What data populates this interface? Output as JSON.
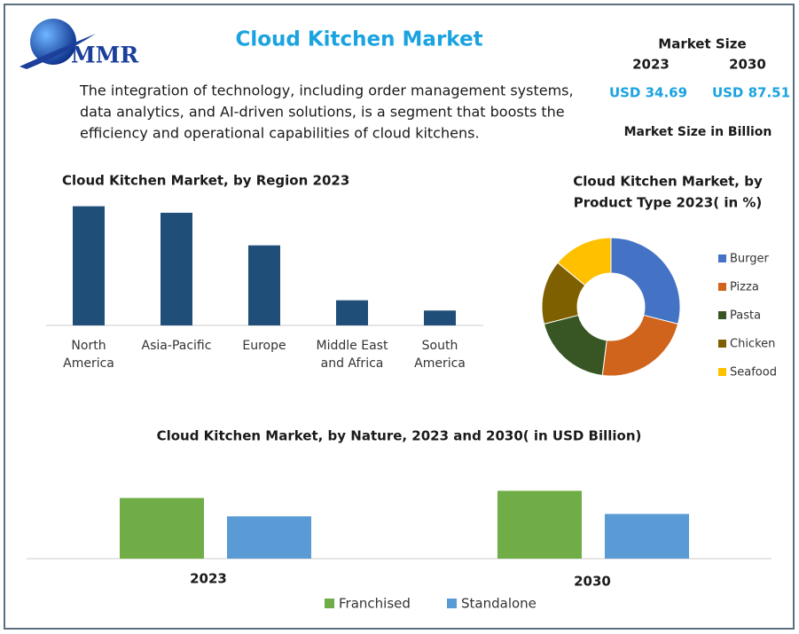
{
  "header": {
    "logo": "MMR",
    "title": "Cloud Kitchen Market",
    "description": [
      "The integration of technology, including order management systems,",
      "data analytics, and AI-driven solutions, is a segment that boosts the",
      "efficiency and operational capabilities of cloud kitchens."
    ],
    "market_size": {
      "label": "Market Size",
      "years": [
        "2023",
        "2030"
      ],
      "values": [
        "USD 34.69",
        "USD 87.51"
      ],
      "note": "Market Size in Billion"
    }
  },
  "chart_data": [
    {
      "type": "bar",
      "title": "Cloud Kitchen Market, by Region 2023",
      "categories": [
        [
          "North",
          "America"
        ],
        [
          "Asia-Pacific"
        ],
        [
          "Europe"
        ],
        [
          "Middle East",
          "and Africa"
        ],
        [
          "South",
          "America"
        ]
      ],
      "values": [
        128,
        121,
        86,
        27,
        16
      ],
      "color": "#1f4e79",
      "ylim": [
        0,
        140
      ]
    },
    {
      "type": "pie",
      "title": [
        "Cloud Kitchen Market, by",
        "Product Type 2023( in %)"
      ],
      "categories": [
        "Burger",
        "Pizza",
        "Pasta",
        "Chicken",
        "Seafood"
      ],
      "values": [
        29,
        23,
        19,
        15,
        14
      ],
      "colors": [
        "#4472c4",
        "#d0641c",
        "#375623",
        "#7f6000",
        "#ffc000"
      ],
      "donut": true
    },
    {
      "type": "grouped_bar",
      "title": "Cloud Kitchen Market, by Nature, 2023 and 2030( in USD Billion)",
      "categories": [
        "2023",
        "2030"
      ],
      "series": [
        {
          "name": "Franchised",
          "color": "#70ad47",
          "values": [
            76,
            85
          ]
        },
        {
          "name": "Standalone",
          "color": "#5b9bd5",
          "values": [
            53,
            56
          ]
        }
      ],
      "ylim": [
        0,
        100
      ]
    }
  ]
}
